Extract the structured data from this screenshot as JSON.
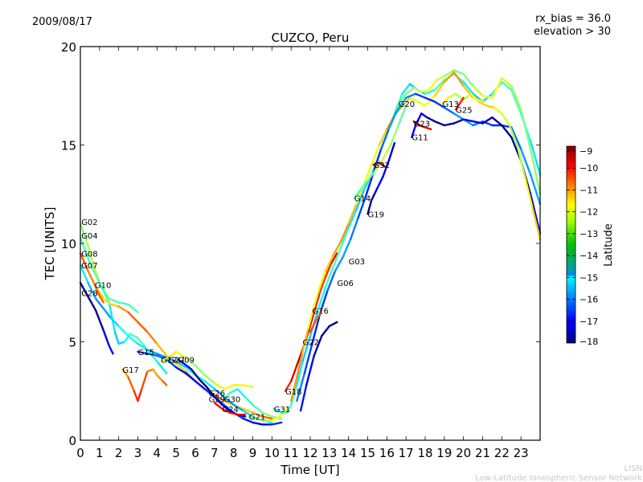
{
  "chart_data": {
    "type": "scatter",
    "title": "CUZCO, Peru",
    "date": "2009/08/17",
    "annotations": [
      "rx_bias = 36.0",
      "elevation > 30"
    ],
    "xlabel": "Time [UT]",
    "ylabel": "TEC [UNITS]",
    "xlim": [
      0,
      24
    ],
    "ylim": [
      0,
      20
    ],
    "xticks": [
      "0",
      "1",
      "2",
      "3",
      "4",
      "5",
      "6",
      "7",
      "8",
      "9",
      "10",
      "11",
      "12",
      "13",
      "14",
      "15",
      "16",
      "17",
      "18",
      "19",
      "20",
      "21",
      "22",
      "23"
    ],
    "yticks": [
      "0",
      "5",
      "10",
      "15",
      "20"
    ],
    "colorbar": {
      "label": "Latitude",
      "range": [
        -18,
        -9
      ],
      "ticks": [
        "−9",
        "−10",
        "−11",
        "−12",
        "−13",
        "−14",
        "−15",
        "−16",
        "−17",
        "−18"
      ],
      "colormap": "jet"
    },
    "footer": {
      "line1": "LISN",
      "line2": "Low-Latitude Ionospheric Sensor Network"
    },
    "satellite_labels": [
      {
        "name": "G02",
        "x": 0.05,
        "y": 11.1
      },
      {
        "name": "G04",
        "x": 0.05,
        "y": 10.4
      },
      {
        "name": "G08",
        "x": 0.05,
        "y": 9.5
      },
      {
        "name": "G07",
        "x": 0.05,
        "y": 8.9
      },
      {
        "name": "G10",
        "x": 0.75,
        "y": 7.9
      },
      {
        "name": "G28",
        "x": 0.05,
        "y": 7.5
      },
      {
        "name": "G15",
        "x": 3.0,
        "y": 4.5
      },
      {
        "name": "G12",
        "x": 4.2,
        "y": 4.1
      },
      {
        "name": "G27",
        "x": 4.6,
        "y": 4.1
      },
      {
        "name": "G09",
        "x": 5.1,
        "y": 4.1
      },
      {
        "name": "G17",
        "x": 2.2,
        "y": 3.6
      },
      {
        "name": "G26",
        "x": 6.7,
        "y": 2.4
      },
      {
        "name": "G29",
        "x": 6.7,
        "y": 2.1
      },
      {
        "name": "G30",
        "x": 7.5,
        "y": 2.1
      },
      {
        "name": "G24",
        "x": 7.4,
        "y": 1.6
      },
      {
        "name": "G21",
        "x": 8.8,
        "y": 1.2
      },
      {
        "name": "G31",
        "x": 10.1,
        "y": 1.6
      },
      {
        "name": "G18",
        "x": 10.7,
        "y": 2.5
      },
      {
        "name": "G22",
        "x": 11.6,
        "y": 5.0
      },
      {
        "name": "G16",
        "x": 12.1,
        "y": 6.6
      },
      {
        "name": "G06",
        "x": 13.4,
        "y": 8.0
      },
      {
        "name": "G03",
        "x": 14.0,
        "y": 9.1
      },
      {
        "name": "G14",
        "x": 14.3,
        "y": 12.3
      },
      {
        "name": "G19",
        "x": 15.0,
        "y": 11.5
      },
      {
        "name": "G32",
        "x": 15.3,
        "y": 14.0
      },
      {
        "name": "G20",
        "x": 16.6,
        "y": 17.1
      },
      {
        "name": "G23",
        "x": 17.4,
        "y": 16.1
      },
      {
        "name": "G11",
        "x": 17.3,
        "y": 15.4
      },
      {
        "name": "G13",
        "x": 18.9,
        "y": 17.1
      },
      {
        "name": "G25",
        "x": 19.6,
        "y": 16.8
      }
    ],
    "series": [
      {
        "name": "G02",
        "lat": -13.5,
        "x": [
          0,
          0.3,
          0.6,
          1.0,
          1.5,
          2.0,
          2.5,
          3.0
        ],
        "y": [
          11.0,
          10.2,
          9.2,
          8.0,
          7.2,
          7.0,
          6.9,
          6.5
        ]
      },
      {
        "name": "G04",
        "lat": -14.5,
        "x": [
          0,
          0.5,
          1.0,
          1.5,
          1.8,
          2.0,
          2.3,
          2.6,
          3.0,
          3.5,
          4.0,
          4.5
        ],
        "y": [
          10.3,
          9.0,
          8.0,
          7.0,
          5.5,
          4.9,
          5.0,
          5.4,
          5.2,
          4.6,
          4.0,
          3.4
        ]
      },
      {
        "name": "G08",
        "lat": -11.5,
        "x": [
          0,
          0.4,
          0.8,
          1.2,
          1.6,
          2.0,
          2.5,
          3.0,
          3.5,
          4.0,
          4.5,
          5.0,
          5.5,
          6.0,
          6.5,
          7.0,
          7.5,
          8.0,
          8.5,
          9.0,
          9.5,
          10.0
        ],
        "y": [
          9.5,
          8.6,
          7.8,
          7.2,
          6.9,
          6.8,
          6.5,
          6.0,
          5.5,
          4.9,
          4.3,
          3.9,
          3.5,
          3.0,
          2.6,
          2.3,
          2.0,
          1.8,
          1.6,
          1.4,
          1.2,
          1.1
        ]
      },
      {
        "name": "G07",
        "lat": -15.0,
        "x": [
          0,
          0.4,
          0.8,
          1.2,
          1.6,
          2.0,
          2.5,
          3.0,
          3.5,
          4.0,
          4.5,
          5.0,
          5.5,
          6.0,
          6.5,
          7.0,
          7.5,
          8.0,
          8.5,
          9.0,
          9.5,
          10.0
        ],
        "y": [
          8.9,
          8.0,
          7.2,
          6.7,
          6.2,
          5.8,
          5.3,
          4.9,
          4.6,
          4.4,
          4.2,
          4.0,
          3.7,
          3.3,
          3.0,
          2.6,
          2.2,
          1.8,
          1.5,
          1.2,
          1.0,
          0.9
        ]
      },
      {
        "name": "G28",
        "lat": -17.3,
        "x": [
          0,
          0.4,
          0.8,
          1.2,
          1.5,
          1.7
        ],
        "y": [
          8.0,
          7.3,
          6.6,
          5.6,
          4.8,
          4.4
        ]
      },
      {
        "name": "G10",
        "lat": -10.5,
        "x": [
          0.75,
          0.9,
          1.2
        ],
        "y": [
          7.9,
          7.5,
          7.0
        ]
      },
      {
        "name": "G17",
        "lat": -11.0,
        "x": [
          2.2,
          2.5,
          2.8,
          3.0,
          3.2,
          3.5,
          3.8,
          4.0,
          4.3,
          4.5
        ],
        "y": [
          3.6,
          3.2,
          2.5,
          2.0,
          2.6,
          3.5,
          3.6,
          3.3,
          3.0,
          2.8
        ]
      },
      {
        "name": "G15",
        "lat": -16.5,
        "x": [
          3.0,
          3.5,
          4.0,
          4.5,
          5.0,
          5.5,
          6.0,
          6.5,
          7.0,
          7.5,
          8.0,
          8.5,
          9.0,
          9.5,
          10.0,
          10.5
        ],
        "y": [
          4.5,
          4.4,
          4.3,
          4.1,
          3.7,
          3.4,
          3.0,
          2.6,
          2.2,
          1.8,
          1.4,
          1.1,
          0.9,
          0.8,
          0.8,
          0.9
        ]
      },
      {
        "name": "G12",
        "lat": -12.8,
        "x": [
          4.2,
          4.6,
          5.0,
          5.5,
          6.0,
          6.5,
          7.0,
          7.5,
          8.0,
          8.5,
          9.0
        ],
        "y": [
          4.0,
          4.2,
          4.5,
          4.2,
          3.8,
          3.3,
          2.9,
          2.6,
          2.8,
          2.8,
          2.7
        ]
      },
      {
        "name": "G09",
        "lat": -17.5,
        "x": [
          5.1,
          5.4,
          5.8,
          6.2,
          6.6,
          7.0,
          7.4,
          7.8,
          8.2,
          8.6
        ],
        "y": [
          4.1,
          3.9,
          3.6,
          3.1,
          2.7,
          2.2,
          1.8,
          1.5,
          1.3,
          1.2
        ]
      },
      {
        "name": "G30",
        "lat": -14.0,
        "x": [
          7.5,
          7.8,
          8.2,
          8.6,
          9.0,
          9.5,
          10.0,
          10.5
        ],
        "y": [
          2.1,
          2.4,
          2.6,
          2.2,
          1.8,
          1.4,
          1.2,
          1.1
        ]
      },
      {
        "name": "G24",
        "lat": -9.8,
        "x": [
          7.0,
          7.4,
          7.8,
          8.2,
          8.6
        ],
        "y": [
          1.9,
          1.6,
          1.4,
          1.3,
          1.3
        ]
      },
      {
        "name": "G21",
        "lat": -13.0,
        "x": [
          8.8,
          9.2,
          9.6,
          10.0,
          10.4,
          10.8
        ],
        "y": [
          1.2,
          1.1,
          1.0,
          1.0,
          1.2,
          1.6
        ]
      },
      {
        "name": "G18",
        "lat": -10.0,
        "x": [
          10.7,
          11.0,
          11.3,
          11.6,
          11.9,
          12.2,
          12.5,
          12.8,
          13.1,
          13.4
        ],
        "y": [
          2.5,
          3.0,
          3.8,
          4.6,
          5.5,
          6.5,
          7.5,
          8.3,
          9.0,
          9.5
        ]
      },
      {
        "name": "G31",
        "lat": -14.5,
        "x": [
          10.1,
          10.5,
          10.8,
          11.0,
          11.3,
          11.6,
          12.0,
          12.4,
          12.8,
          13.2,
          13.6,
          14.0,
          14.4,
          14.8,
          15.2,
          15.6,
          16.0,
          16.4,
          16.8,
          17.2,
          17.6,
          18.0,
          18.5,
          19.0,
          19.5,
          20.0,
          20.5,
          21.0,
          21.5,
          22.0,
          22.5,
          23.0,
          23.5,
          24.0
        ],
        "y": [
          1.6,
          1.4,
          1.4,
          1.8,
          2.8,
          4.0,
          5.3,
          6.6,
          7.8,
          8.8,
          9.8,
          10.8,
          11.7,
          12.7,
          13.5,
          14.5,
          15.6,
          16.6,
          17.6,
          18.1,
          17.8,
          17.6,
          17.8,
          18.3,
          18.6,
          18.2,
          17.6,
          17.2,
          17.6,
          18.2,
          17.8,
          16.6,
          15.2,
          13.5
        ]
      },
      {
        "name": "G22",
        "lat": -12.0,
        "x": [
          11.0,
          11.3,
          11.6,
          11.9,
          12.2,
          12.5,
          12.8,
          13.2,
          13.6,
          14.0,
          14.4,
          14.8,
          15.2,
          15.6,
          16.0,
          16.4,
          16.8,
          17.2,
          17.6,
          18.0,
          18.5,
          19.0,
          19.5,
          20.0,
          20.5,
          21.0
        ],
        "y": [
          2.0,
          3.2,
          4.5,
          5.7,
          6.8,
          7.8,
          8.6,
          9.4,
          10.1,
          11.0,
          12.0,
          13.0,
          14.0,
          15.0,
          15.8,
          16.5,
          17.0,
          17.4,
          17.2,
          17.0,
          17.5,
          18.2,
          18.7,
          18.0,
          17.4,
          17.2
        ]
      },
      {
        "name": "G06",
        "lat": -17.3,
        "x": [
          11.5,
          11.8,
          12.2,
          12.6,
          13.0,
          13.4
        ],
        "y": [
          1.5,
          2.8,
          4.3,
          5.3,
          5.8,
          6.0
        ]
      },
      {
        "name": "G03",
        "lat": -16.0,
        "x": [
          11.3,
          11.7,
          12.1,
          12.5,
          12.9,
          13.3,
          13.7,
          14.1,
          14.5,
          14.9,
          15.3,
          15.7,
          16.1,
          16.5,
          17.0,
          17.5,
          18.0,
          18.5,
          19.0,
          19.5,
          20.0,
          20.5,
          21.0,
          21.5,
          22.0,
          22.5,
          23.0,
          23.5,
          24.0
        ],
        "y": [
          2.0,
          3.4,
          4.9,
          6.4,
          7.6,
          8.6,
          9.3,
          10.2,
          11.3,
          12.4,
          13.6,
          14.8,
          15.8,
          16.7,
          17.4,
          17.6,
          17.4,
          17.2,
          16.9,
          16.6,
          16.3,
          16.0,
          16.2,
          16.0,
          16.0,
          15.9,
          14.8,
          13.5,
          12.0
        ]
      },
      {
        "name": "G16",
        "lat": -10.5,
        "x": [
          12.0,
          12.3,
          12.6
        ],
        "y": [
          5.5,
          6.1,
          6.6
        ]
      },
      {
        "name": "G14",
        "lat": -13.5,
        "x": [
          14.3,
          14.6,
          15.0,
          15.4,
          15.8,
          16.2,
          16.6,
          17.0
        ],
        "y": [
          12.3,
          12.7,
          13.2,
          13.7,
          14.3,
          15.0,
          16.0,
          17.0
        ]
      },
      {
        "name": "G19",
        "lat": -17.5,
        "x": [
          15.0,
          15.2,
          15.5,
          15.8,
          16.1,
          16.4
        ],
        "y": [
          11.5,
          12.2,
          12.8,
          13.4,
          14.2,
          15.1
        ]
      },
      {
        "name": "G32",
        "lat": -9.8,
        "x": [
          15.3,
          15.6,
          15.9
        ],
        "y": [
          14.0,
          14.1,
          13.9
        ]
      },
      {
        "name": "G11",
        "lat": -17.5,
        "x": [
          17.3,
          17.5,
          17.8,
          18.1,
          18.5,
          19.0,
          19.5,
          20.0,
          20.5,
          21.0,
          21.5,
          22.0,
          22.5,
          23.0,
          23.5,
          24.0
        ],
        "y": [
          15.4,
          16.0,
          16.6,
          16.4,
          16.2,
          16.0,
          16.1,
          16.3,
          16.2,
          16.1,
          16.4,
          16.0,
          15.4,
          14.2,
          12.5,
          10.5
        ]
      },
      {
        "name": "G23",
        "lat": -9.7,
        "x": [
          17.4,
          17.7,
          18.0,
          18.3
        ],
        "y": [
          16.2,
          16.0,
          15.9,
          15.8
        ]
      },
      {
        "name": "G13",
        "lat": -12.5,
        "x": [
          18.9,
          19.2,
          19.6,
          20.0,
          20.4,
          20.8,
          21.2,
          21.6,
          22.0,
          22.4,
          22.8,
          23.2,
          23.6,
          24.0
        ],
        "y": [
          17.1,
          17.4,
          17.6,
          17.3,
          17.6,
          17.2,
          17.0,
          16.9,
          16.6,
          16.0,
          15.0,
          13.4,
          11.8,
          10.2
        ]
      },
      {
        "name": "G25",
        "lat": -9.8,
        "x": [
          19.6,
          19.8,
          20.0
        ],
        "y": [
          16.8,
          17.1,
          17.4
        ]
      },
      {
        "name": "G20",
        "lat": -13.0,
        "x": [
          16.6,
          17.0,
          17.4,
          17.8,
          18.2,
          18.6,
          19.0,
          19.5,
          20.0,
          20.5,
          21.0,
          21.5,
          22.0,
          22.5,
          23.0,
          23.5,
          24.0
        ],
        "y": [
          17.1,
          17.6,
          17.9,
          17.7,
          17.8,
          18.3,
          18.5,
          18.8,
          18.6,
          18.0,
          17.5,
          17.4,
          18.4,
          18.0,
          16.8,
          14.8,
          12.5
        ]
      }
    ]
  }
}
